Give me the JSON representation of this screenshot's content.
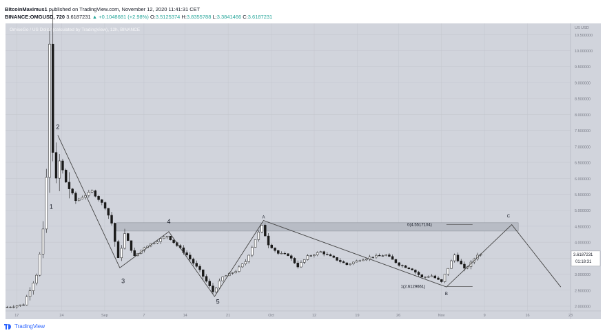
{
  "header": {
    "author": "BitcoinMaximus1",
    "published": "published on TradingView.com, November 12, 2020 11:41:31 CET",
    "symbol_line": "BINANCE:OMGUSD, 720",
    "last": "3.6187231",
    "change": "+0.1048681 (+2.98%)",
    "o_label": "O:",
    "o": "3.5125374",
    "h_label": "H:",
    "h": "3.8355788",
    "l_label": "L:",
    "l": "3.3841466",
    "c_label": "C:",
    "c": "3.6187231"
  },
  "chart_watermark": "OmiseGo / US Dollar (calculated by TradingView), 12h, BINANCE",
  "currency_label": "US USD",
  "price_label": "3.6187231",
  "countdown_label": "01:18:31",
  "footer_brand": "TradingView",
  "colors": {
    "background": "#d1d4dc",
    "grid": "#c3c6ce",
    "up": "#ffffff",
    "down": "#1a1a1a",
    "wave_line": "#444444",
    "zone": "#b8bcc5"
  },
  "chart_data": {
    "type": "candlestick",
    "title": "",
    "xlabel": "",
    "ylabel": "",
    "x_ticks": [
      "17",
      "24",
      "Sep",
      "7",
      "14",
      "21",
      "Oct",
      "12",
      "19",
      "26",
      "Nov",
      "9",
      "16",
      "23"
    ],
    "y_ticks": [
      "10.500000",
      "10.000000",
      "9.500000",
      "9.000000",
      "8.500000",
      "8.000000",
      "7.500000",
      "7.000000",
      "6.500000",
      "6.000000",
      "5.500000",
      "5.000000",
      "4.500000",
      "4.000000",
      "3.500000",
      "3.000000",
      "2.500000",
      "2.000000"
    ],
    "ylim": [
      1.85,
      10.85
    ],
    "x_range": [
      0,
      173
    ],
    "resistance_zone": [
      4.35,
      4.61
    ],
    "wave_labels": [
      {
        "text": "2",
        "x": 16,
        "y": 7.55
      },
      {
        "text": "1",
        "x": 14,
        "y": 5.05
      },
      {
        "text": "3",
        "x": 36,
        "y": 2.72
      },
      {
        "text": "4",
        "x": 50,
        "y": 4.58
      },
      {
        "text": "5",
        "x": 65,
        "y": 2.08
      },
      {
        "text": "A",
        "x": 79,
        "y": 4.75
      },
      {
        "text": "B",
        "x": 135,
        "y": 2.35
      },
      {
        "text": "C",
        "x": 154,
        "y": 4.78
      }
    ],
    "fib_labels": [
      {
        "text": "0(4.5517104)",
        "x": 123,
        "y": 4.5517
      },
      {
        "text": "1(2.6129661)",
        "x": 121,
        "y": 2.613
      }
    ],
    "wave_path": [
      [
        16,
        7.35
      ],
      [
        35,
        3.2
      ],
      [
        50,
        4.33
      ],
      [
        64,
        2.3
      ],
      [
        79,
        4.68
      ],
      [
        135,
        2.6
      ],
      [
        155,
        4.55
      ],
      [
        170,
        2.6
      ]
    ],
    "key_points": [
      {
        "x": 0,
        "y": 1.95
      },
      {
        "x": 6,
        "y": 2.05
      },
      {
        "x": 10,
        "y": 3.0
      },
      {
        "x": 12,
        "y": 4.2
      },
      {
        "x": 13,
        "y": 6.0
      },
      {
        "x": 14,
        "y": 9.9
      },
      {
        "x": 15,
        "y": 7.2
      },
      {
        "x": 16,
        "y": 5.8
      },
      {
        "x": 17,
        "y": 6.5
      },
      {
        "x": 19,
        "y": 5.9
      },
      {
        "x": 22,
        "y": 5.3
      },
      {
        "x": 27,
        "y": 5.6
      },
      {
        "x": 31,
        "y": 5.1
      },
      {
        "x": 33,
        "y": 4.6
      },
      {
        "x": 35,
        "y": 3.45
      },
      {
        "x": 37,
        "y": 4.25
      },
      {
        "x": 40,
        "y": 3.55
      },
      {
        "x": 43,
        "y": 3.85
      },
      {
        "x": 47,
        "y": 4.05
      },
      {
        "x": 50,
        "y": 4.2
      },
      {
        "x": 53,
        "y": 3.9
      },
      {
        "x": 56,
        "y": 3.6
      },
      {
        "x": 60,
        "y": 3.1
      },
      {
        "x": 64,
        "y": 2.45
      },
      {
        "x": 67,
        "y": 2.9
      },
      {
        "x": 71,
        "y": 3.1
      },
      {
        "x": 74,
        "y": 3.4
      },
      {
        "x": 77,
        "y": 4.1
      },
      {
        "x": 79,
        "y": 4.5
      },
      {
        "x": 81,
        "y": 3.95
      },
      {
        "x": 84,
        "y": 3.65
      },
      {
        "x": 87,
        "y": 3.6
      },
      {
        "x": 90,
        "y": 3.25
      },
      {
        "x": 93,
        "y": 3.55
      },
      {
        "x": 97,
        "y": 3.7
      },
      {
        "x": 101,
        "y": 3.5
      },
      {
        "x": 105,
        "y": 3.3
      },
      {
        "x": 109,
        "y": 3.45
      },
      {
        "x": 113,
        "y": 3.55
      },
      {
        "x": 117,
        "y": 3.6
      },
      {
        "x": 121,
        "y": 3.3
      },
      {
        "x": 125,
        "y": 3.15
      },
      {
        "x": 128,
        "y": 2.9
      },
      {
        "x": 131,
        "y": 2.95
      },
      {
        "x": 134,
        "y": 2.75
      },
      {
        "x": 136,
        "y": 3.2
      },
      {
        "x": 138,
        "y": 3.6
      },
      {
        "x": 141,
        "y": 3.15
      },
      {
        "x": 143,
        "y": 3.35
      },
      {
        "x": 145,
        "y": 3.62
      }
    ]
  }
}
